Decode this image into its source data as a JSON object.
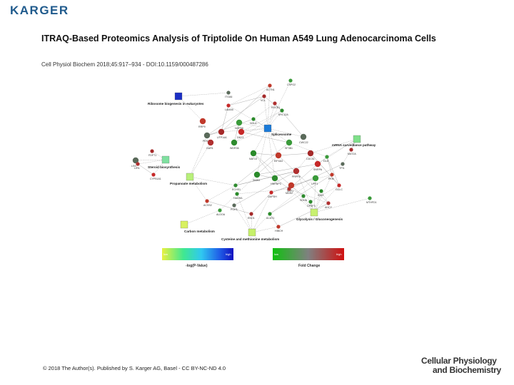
{
  "header": {
    "logo_text": "KARGER"
  },
  "title": "ITRAQ-Based Proteomics Analysis of Triptolide On Human A549 Lung Adenocarcinoma Cells",
  "citation": "Cell Physiol Biochem 2018;45:917–934 - DOI:10.1159/000487286",
  "figure": {
    "pathways": [
      {
        "label": "Ribosome biogenesis in eukaryotes",
        "color": "#1b2fc4"
      },
      {
        "label": "Spliceosome",
        "color": "#1a7ad8"
      },
      {
        "label": "mRNA surveillance pathway",
        "color": "#7fe08a"
      },
      {
        "label": "Steroid biosynthesis",
        "color": "#7fe0a0"
      },
      {
        "label": "Propanoate metabolism",
        "color": "#b8f07a"
      },
      {
        "label": "Glycolysis / Gluconeogenesis",
        "color": "#c8f070"
      },
      {
        "label": "Carbon metabolism",
        "color": "#d8f060"
      },
      {
        "label": "Cysteine and methionine metabolism",
        "color": "#c6f06a"
      }
    ],
    "genes": [
      "ACTN1",
      "CSPG2",
      "ITGA6",
      "VCL",
      "LAMA5",
      "ROCK1",
      "MYL12A",
      "NOL6",
      "RRP9",
      "NOP58",
      "PES1",
      "UTP14A",
      "DKC1",
      "GAR1",
      "WDR36",
      "NAT10",
      "EIF4A3",
      "SF3B1",
      "CWC22",
      "CDC5L",
      "SNRPA",
      "PRPF8",
      "HNRNPC",
      "SNW1",
      "NXF1",
      "UPF1",
      "LSS",
      "FDFT1",
      "CYP51A1",
      "LIPA",
      "ECHS1",
      "HADHA",
      "ACSS2",
      "ALDOA",
      "PGK1",
      "ENO1",
      "GAPDH",
      "MDH2",
      "SDHA",
      "IDH1",
      "PKM",
      "DLD",
      "TPI1",
      "MAT2A",
      "GCLC",
      "AHCY",
      "CPSF3",
      "ACAT1",
      "HIBCH",
      "MTHFD1"
    ],
    "legend": {
      "pvalue_low": "low",
      "pvalue_high": "high",
      "pvalue_label": "-log(P-Value)",
      "fold_low": "low",
      "fold_high": "high",
      "fold_label": "Fold Change"
    }
  },
  "footer": {
    "copyright": "© 2018 The Author(s). Published by S. Karger AG, Basel - CC BY-NC-ND 4.0"
  },
  "journal": {
    "line1": "Cellular Physiology",
    "line2": "and Biochemistry"
  }
}
